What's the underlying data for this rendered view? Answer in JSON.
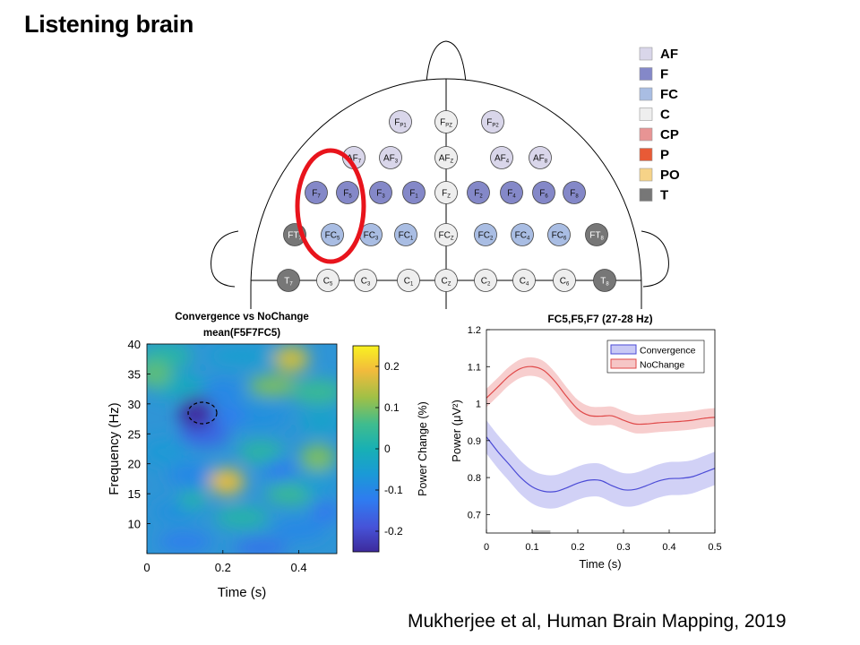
{
  "slide": {
    "title": "Listening brain",
    "citation": "Mukherjee et al, Human Brain Mapping, 2019"
  },
  "legend": [
    {
      "label": "AF",
      "color": "#d9d6ea"
    },
    {
      "label": "F",
      "color": "#8488c8"
    },
    {
      "label": "FC",
      "color": "#a9bde3"
    },
    {
      "label": "C",
      "color": "#eeeeee"
    },
    {
      "label": "CP",
      "color": "#e89494"
    },
    {
      "label": "P",
      "color": "#e85a36"
    },
    {
      "label": "PO",
      "color": "#f6d388"
    },
    {
      "label": "T",
      "color": "#777777"
    }
  ],
  "electrodes": [
    {
      "base": "F",
      "sub": "P1",
      "group": "AF"
    },
    {
      "base": "F",
      "sub": "PZ",
      "group": "C"
    },
    {
      "base": "F",
      "sub": "P2",
      "group": "AF"
    },
    {
      "base": "AF",
      "sub": "7",
      "group": "AF"
    },
    {
      "base": "AF",
      "sub": "3",
      "group": "AF"
    },
    {
      "base": "AF",
      "sub": "Z",
      "group": "C"
    },
    {
      "base": "AF",
      "sub": "4",
      "group": "AF"
    },
    {
      "base": "AF",
      "sub": "8",
      "group": "AF"
    },
    {
      "base": "F",
      "sub": "7",
      "group": "F"
    },
    {
      "base": "F",
      "sub": "5",
      "group": "F"
    },
    {
      "base": "F",
      "sub": "3",
      "group": "F"
    },
    {
      "base": "F",
      "sub": "1",
      "group": "F"
    },
    {
      "base": "F",
      "sub": "Z",
      "group": "C"
    },
    {
      "base": "F",
      "sub": "2",
      "group": "F"
    },
    {
      "base": "F",
      "sub": "4",
      "group": "F"
    },
    {
      "base": "F",
      "sub": "6",
      "group": "F"
    },
    {
      "base": "F",
      "sub": "8",
      "group": "F"
    },
    {
      "base": "FT",
      "sub": "7",
      "group": "T"
    },
    {
      "base": "FC",
      "sub": "5",
      "group": "FC"
    },
    {
      "base": "FC",
      "sub": "3",
      "group": "FC"
    },
    {
      "base": "FC",
      "sub": "1",
      "group": "FC"
    },
    {
      "base": "FC",
      "sub": "Z",
      "group": "C"
    },
    {
      "base": "FC",
      "sub": "2",
      "group": "FC"
    },
    {
      "base": "FC",
      "sub": "4",
      "group": "FC"
    },
    {
      "base": "FC",
      "sub": "6",
      "group": "FC"
    },
    {
      "base": "FT",
      "sub": "8",
      "group": "T"
    },
    {
      "base": "T",
      "sub": "7",
      "group": "T"
    },
    {
      "base": "C",
      "sub": "5",
      "group": "C"
    },
    {
      "base": "C",
      "sub": "3",
      "group": "C"
    },
    {
      "base": "C",
      "sub": "1",
      "group": "C"
    },
    {
      "base": "C",
      "sub": "Z",
      "group": "C"
    },
    {
      "base": "C",
      "sub": "2",
      "group": "C"
    },
    {
      "base": "C",
      "sub": "4",
      "group": "C"
    },
    {
      "base": "C",
      "sub": "6",
      "group": "C"
    },
    {
      "base": "T",
      "sub": "8",
      "group": "T"
    }
  ],
  "highlight_color": "#e8141c",
  "chart_data": [
    {
      "type": "heatmap",
      "title": "Convergence vs NoChange",
      "subtitle": "mean(F5F7FC5)",
      "xlabel": "Time (s)",
      "ylabel": "Frequency (Hz)",
      "xlim": [
        0,
        0.5
      ],
      "ylim": [
        5,
        40
      ],
      "xticks": [
        "0",
        "0.2",
        "0.4"
      ],
      "yticks": [
        "10",
        "15",
        "20",
        "25",
        "30",
        "35",
        "40"
      ],
      "colorbar": {
        "label": "Power Change (%)",
        "range": [
          -0.25,
          0.25
        ],
        "ticks": [
          "0.2",
          "0.1",
          "0",
          "-0.1",
          "-0.2"
        ]
      },
      "features": [
        {
          "t": 0.13,
          "f": 28.5,
          "value": -0.24,
          "note": "significant cluster (dashed contour)"
        },
        {
          "t": 0.21,
          "f": 17.0,
          "value": 0.18
        },
        {
          "t": 0.38,
          "f": 37.5,
          "value": 0.16
        },
        {
          "t": 0.02,
          "f": 35.0,
          "value": 0.08
        },
        {
          "t": 0.45,
          "f": 21.0,
          "value": 0.1
        }
      ]
    },
    {
      "type": "line",
      "title": "FC5,F5,F7 (27-28 Hz)",
      "xlabel": "Time (s)",
      "ylabel": "Power (μV²)",
      "xlim": [
        0,
        0.5
      ],
      "ylim": [
        0.65,
        1.2
      ],
      "xticks": [
        "0",
        "0.1",
        "0.2",
        "0.3",
        "0.4",
        "0.5"
      ],
      "yticks": [
        "0.7",
        "0.8",
        "0.9",
        "1",
        "1.1",
        "1.2"
      ],
      "legend_position": "top-right",
      "x": [
        0,
        0.025,
        0.05,
        0.075,
        0.1,
        0.125,
        0.15,
        0.175,
        0.2,
        0.225,
        0.25,
        0.275,
        0.3,
        0.325,
        0.35,
        0.375,
        0.4,
        0.425,
        0.45,
        0.475,
        0.5
      ],
      "series": [
        {
          "name": "Convergence",
          "color": "#4b4bd6",
          "band_color": "#c9c9f5",
          "values": [
            0.91,
            0.87,
            0.835,
            0.8,
            0.775,
            0.763,
            0.762,
            0.772,
            0.785,
            0.793,
            0.792,
            0.778,
            0.767,
            0.768,
            0.778,
            0.79,
            0.797,
            0.798,
            0.802,
            0.813,
            0.825
          ],
          "sem": 0.045
        },
        {
          "name": "NoChange",
          "color": "#e04a4a",
          "band_color": "#f6c6c6",
          "values": [
            1.015,
            1.045,
            1.075,
            1.095,
            1.1,
            1.09,
            1.06,
            1.02,
            0.985,
            0.968,
            0.966,
            0.967,
            0.955,
            0.945,
            0.945,
            0.948,
            0.95,
            0.952,
            0.955,
            0.96,
            0.963
          ],
          "sem": 0.025
        }
      ],
      "significance_bar": {
        "start": 0.1,
        "end": 0.14
      }
    }
  ]
}
